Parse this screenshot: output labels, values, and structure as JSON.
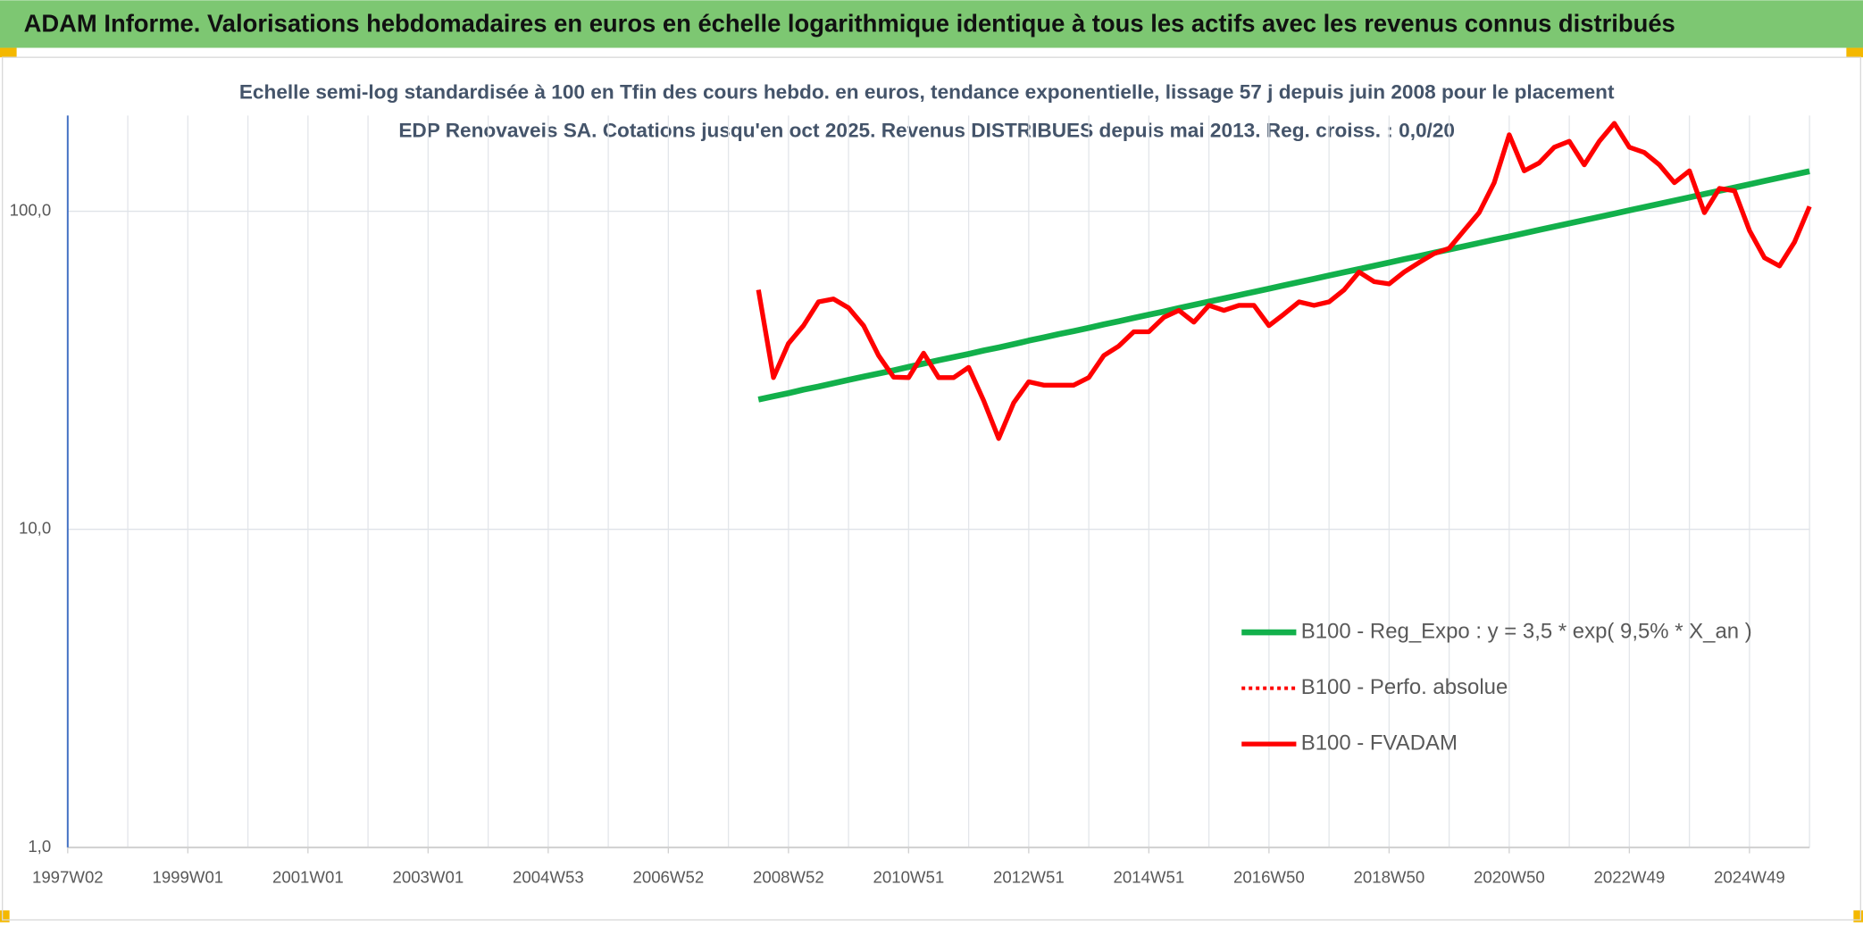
{
  "chart_data": {
    "type": "line",
    "title": "ADAM Informe. Valorisations hebdomadaires en euros en échelle logarithmique identique à tous les actifs avec les revenus connus distribués",
    "subtitle": "Echelle semi-log standardisée à 100 en Tfin des cours hebdo. en euros, tendance exponentielle, lissage 57 j depuis juin 2008 pour le placement EDP Renovaveis SA. Cotations jusqu'en oct 2025. Revenus DISTRIBUES depuis mai 2013. Reg. croiss. : 0,0/20",
    "categories": [
      "1997W02",
      null,
      null,
      null,
      null,
      null,
      null,
      null,
      "1999W01",
      null,
      null,
      null,
      null,
      null,
      null,
      null,
      "2001W01",
      null,
      null,
      null,
      null,
      null,
      null,
      null,
      "2003W01",
      null,
      null,
      null,
      null,
      null,
      null,
      null,
      "2004W53",
      null,
      null,
      null,
      null,
      null,
      null,
      null,
      "2006W52",
      null,
      null,
      null,
      null,
      null,
      null,
      null,
      "2008W52",
      null,
      null,
      null,
      null,
      null,
      null,
      null,
      "2010W51",
      null,
      null,
      null,
      null,
      null,
      null,
      null,
      "2012W51",
      null,
      null,
      null,
      null,
      null,
      null,
      null,
      "2014W51",
      null,
      null,
      null,
      null,
      null,
      null,
      null,
      "2016W50",
      null,
      null,
      null,
      null,
      null,
      null,
      null,
      "2018W50",
      null,
      null,
      null,
      null,
      null,
      null,
      null,
      "2020W50",
      null,
      null,
      null,
      null,
      null,
      null,
      null,
      "2022W49",
      null,
      null,
      null,
      null,
      null,
      null,
      null,
      "2024W49",
      null,
      null,
      null,
      null
    ],
    "series": [
      {
        "name": "B100 - Reg_Expo : y = 3,5 * exp( 9,5% *  X_an )",
        "color": "#12b04b",
        "line_style": "solid",
        "values": [
          null,
          null,
          null,
          null,
          null,
          null,
          null,
          null,
          null,
          null,
          null,
          null,
          null,
          null,
          null,
          null,
          null,
          null,
          null,
          null,
          null,
          null,
          null,
          null,
          null,
          null,
          null,
          null,
          null,
          null,
          null,
          null,
          null,
          null,
          null,
          null,
          null,
          null,
          null,
          null,
          null,
          null,
          null,
          null,
          null,
          null,
          25.6,
          26.2,
          26.8,
          27.5,
          28.1,
          28.8,
          29.5,
          30.2,
          30.9,
          31.6,
          32.4,
          33.2,
          34.0,
          34.8,
          35.6,
          36.5,
          37.3,
          38.2,
          39.2,
          40.1,
          41.1,
          42.0,
          43.0,
          44.1,
          45.1,
          46.2,
          47.3,
          48.4,
          49.6,
          50.8,
          52.0,
          53.2,
          54.5,
          55.8,
          57.1,
          58.5,
          59.9,
          61.3,
          62.8,
          64.3,
          65.8,
          67.4,
          69.0,
          70.7,
          72.3,
          74.1,
          75.8,
          77.6,
          79.5,
          81.4,
          83.3,
          85.3,
          87.4,
          89.5,
          91.6,
          93.8,
          96.0,
          98.3,
          100.7,
          103.1,
          105.5,
          108.0,
          110.6,
          113.3,
          116.0,
          118.7,
          121.6,
          124.5,
          127.5,
          130.5,
          133.6
        ]
      },
      {
        "name": "B100 - Perfo. absolue",
        "color": "#ff0000",
        "line_style": "dotted",
        "values": [
          null,
          null,
          null,
          null,
          null,
          null,
          null,
          null,
          null,
          null,
          null,
          null,
          null,
          null,
          null,
          null,
          null,
          null,
          null,
          null,
          null,
          null,
          null,
          null,
          null,
          null,
          null,
          null,
          null,
          null,
          null,
          null,
          null,
          null,
          null,
          null,
          null,
          null,
          null,
          null,
          null,
          null,
          null,
          null,
          null,
          null,
          56.6,
          30,
          38.4,
          43.7,
          51.9,
          53,
          49.7,
          43.7,
          35.2,
          30.1,
          30,
          35.8,
          30,
          30,
          32.3,
          25.4,
          19.3,
          25,
          29.1,
          28.4,
          28.4,
          28.4,
          30,
          35.2,
          37.7,
          41.8,
          41.8,
          46.4,
          48.8,
          44.8,
          50.6,
          48.8,
          50.6,
          50.6,
          43.7,
          47.5,
          51.9,
          50.6,
          51.9,
          56.6,
          64.4,
          60.1,
          59.1,
          64.4,
          69.0,
          73.6,
          76.5,
          87.1,
          99.1,
          123,
          174,
          134,
          142,
          159,
          166,
          140,
          166,
          189,
          159,
          153,
          140,
          123,
          134,
          99,
          118,
          116,
          87,
          71.4,
          67.3,
          80,
          103.5
        ]
      },
      {
        "name": "B100 - FVADAM",
        "color": "#ff0000",
        "line_style": "solid",
        "values": [
          null,
          null,
          null,
          null,
          null,
          null,
          null,
          null,
          null,
          null,
          null,
          null,
          null,
          null,
          null,
          null,
          null,
          null,
          null,
          null,
          null,
          null,
          null,
          null,
          null,
          null,
          null,
          null,
          null,
          null,
          null,
          null,
          null,
          null,
          null,
          null,
          null,
          null,
          null,
          null,
          null,
          null,
          null,
          null,
          null,
          null,
          56.6,
          30,
          38.4,
          43.7,
          51.9,
          53,
          49.7,
          43.7,
          35.2,
          30.1,
          30,
          35.8,
          30,
          30,
          32.3,
          25.4,
          19.3,
          25,
          29.1,
          28.4,
          28.4,
          28.4,
          30,
          35.2,
          37.7,
          41.8,
          41.8,
          46.4,
          48.8,
          44.8,
          50.6,
          48.8,
          50.6,
          50.6,
          43.7,
          47.5,
          51.9,
          50.6,
          51.9,
          56.6,
          64.4,
          60.1,
          59.1,
          64.4,
          69.0,
          73.6,
          76.5,
          87.1,
          99.1,
          123,
          174,
          134,
          142,
          159,
          166,
          140,
          166,
          189,
          159,
          153,
          140,
          123,
          134,
          99,
          118,
          116,
          87,
          71.4,
          67.3,
          80,
          103.5
        ]
      }
    ],
    "ylim": [
      1,
      200
    ],
    "yticks": [
      {
        "value": 1,
        "label": "1,0"
      },
      {
        "value": 10,
        "label": "10,0"
      },
      {
        "value": 100,
        "label": "100,0"
      }
    ],
    "log_scale": true,
    "grid": true,
    "legend": "right"
  }
}
